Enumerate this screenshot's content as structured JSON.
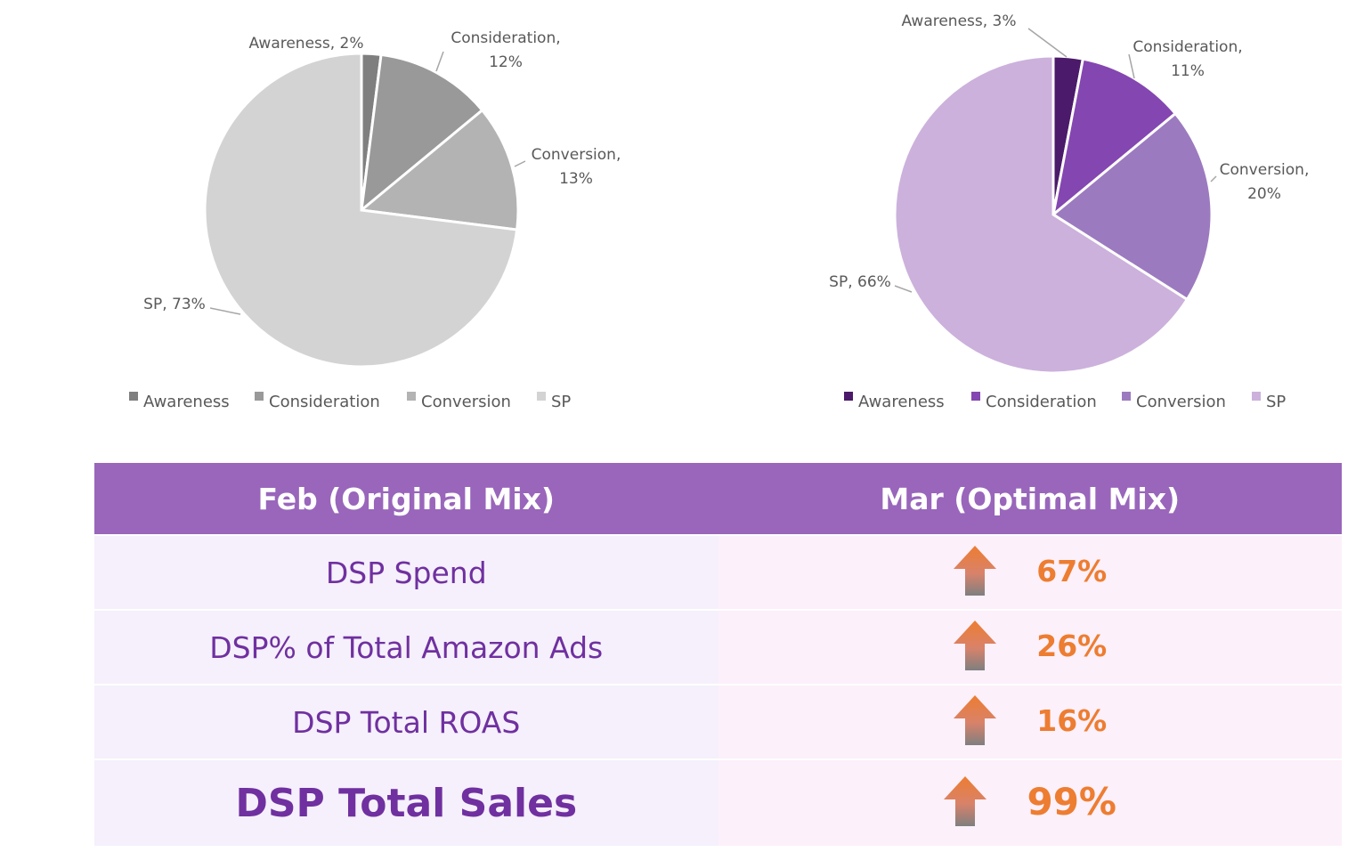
{
  "chart_data": [
    {
      "type": "pie",
      "title": "",
      "categories": [
        "Awareness",
        "Consideration",
        "Conversion",
        "SP"
      ],
      "values": [
        2,
        12,
        13,
        73
      ],
      "colors": [
        "#7f7f7f",
        "#999999",
        "#b3b3b3",
        "#d3d3d3"
      ],
      "data_labels": [
        "Awareness, 2%",
        "Consideration,|12%",
        "Conversion,|13%",
        "SP, 73%"
      ],
      "legend": {
        "position": "bottom",
        "items": [
          "Awareness",
          "Consideration",
          "Conversion",
          "SP"
        ]
      }
    },
    {
      "type": "pie",
      "title": "",
      "categories": [
        "Awareness",
        "Consideration",
        "Conversion",
        "SP"
      ],
      "values": [
        3,
        11,
        20,
        66
      ],
      "colors": [
        "#4b1a6a",
        "#8446b0",
        "#9c7abf",
        "#ccb1dc"
      ],
      "data_labels": [
        "Awareness, 3%",
        "Consideration,|11%",
        "Conversion,|20%",
        "SP, 66%"
      ],
      "legend": {
        "position": "bottom",
        "items": [
          "Awareness",
          "Consideration",
          "Conversion",
          "SP"
        ]
      }
    }
  ],
  "table": {
    "header_left": "Feb (Original Mix)",
    "header_right": "Mar (Optimal Mix)",
    "rows": [
      {
        "label": "DSP Spend",
        "value": "67%"
      },
      {
        "label": "DSP% of Total Amazon Ads",
        "value": "26%"
      },
      {
        "label": "DSP Total ROAS",
        "value": "16%"
      },
      {
        "label": "DSP Total Sales",
        "value": "99%"
      }
    ],
    "header_color": "#9966bb",
    "label_color": "#7030a0",
    "value_color": "#ed7d31",
    "arrow_icon": "up-arrow-icon"
  }
}
